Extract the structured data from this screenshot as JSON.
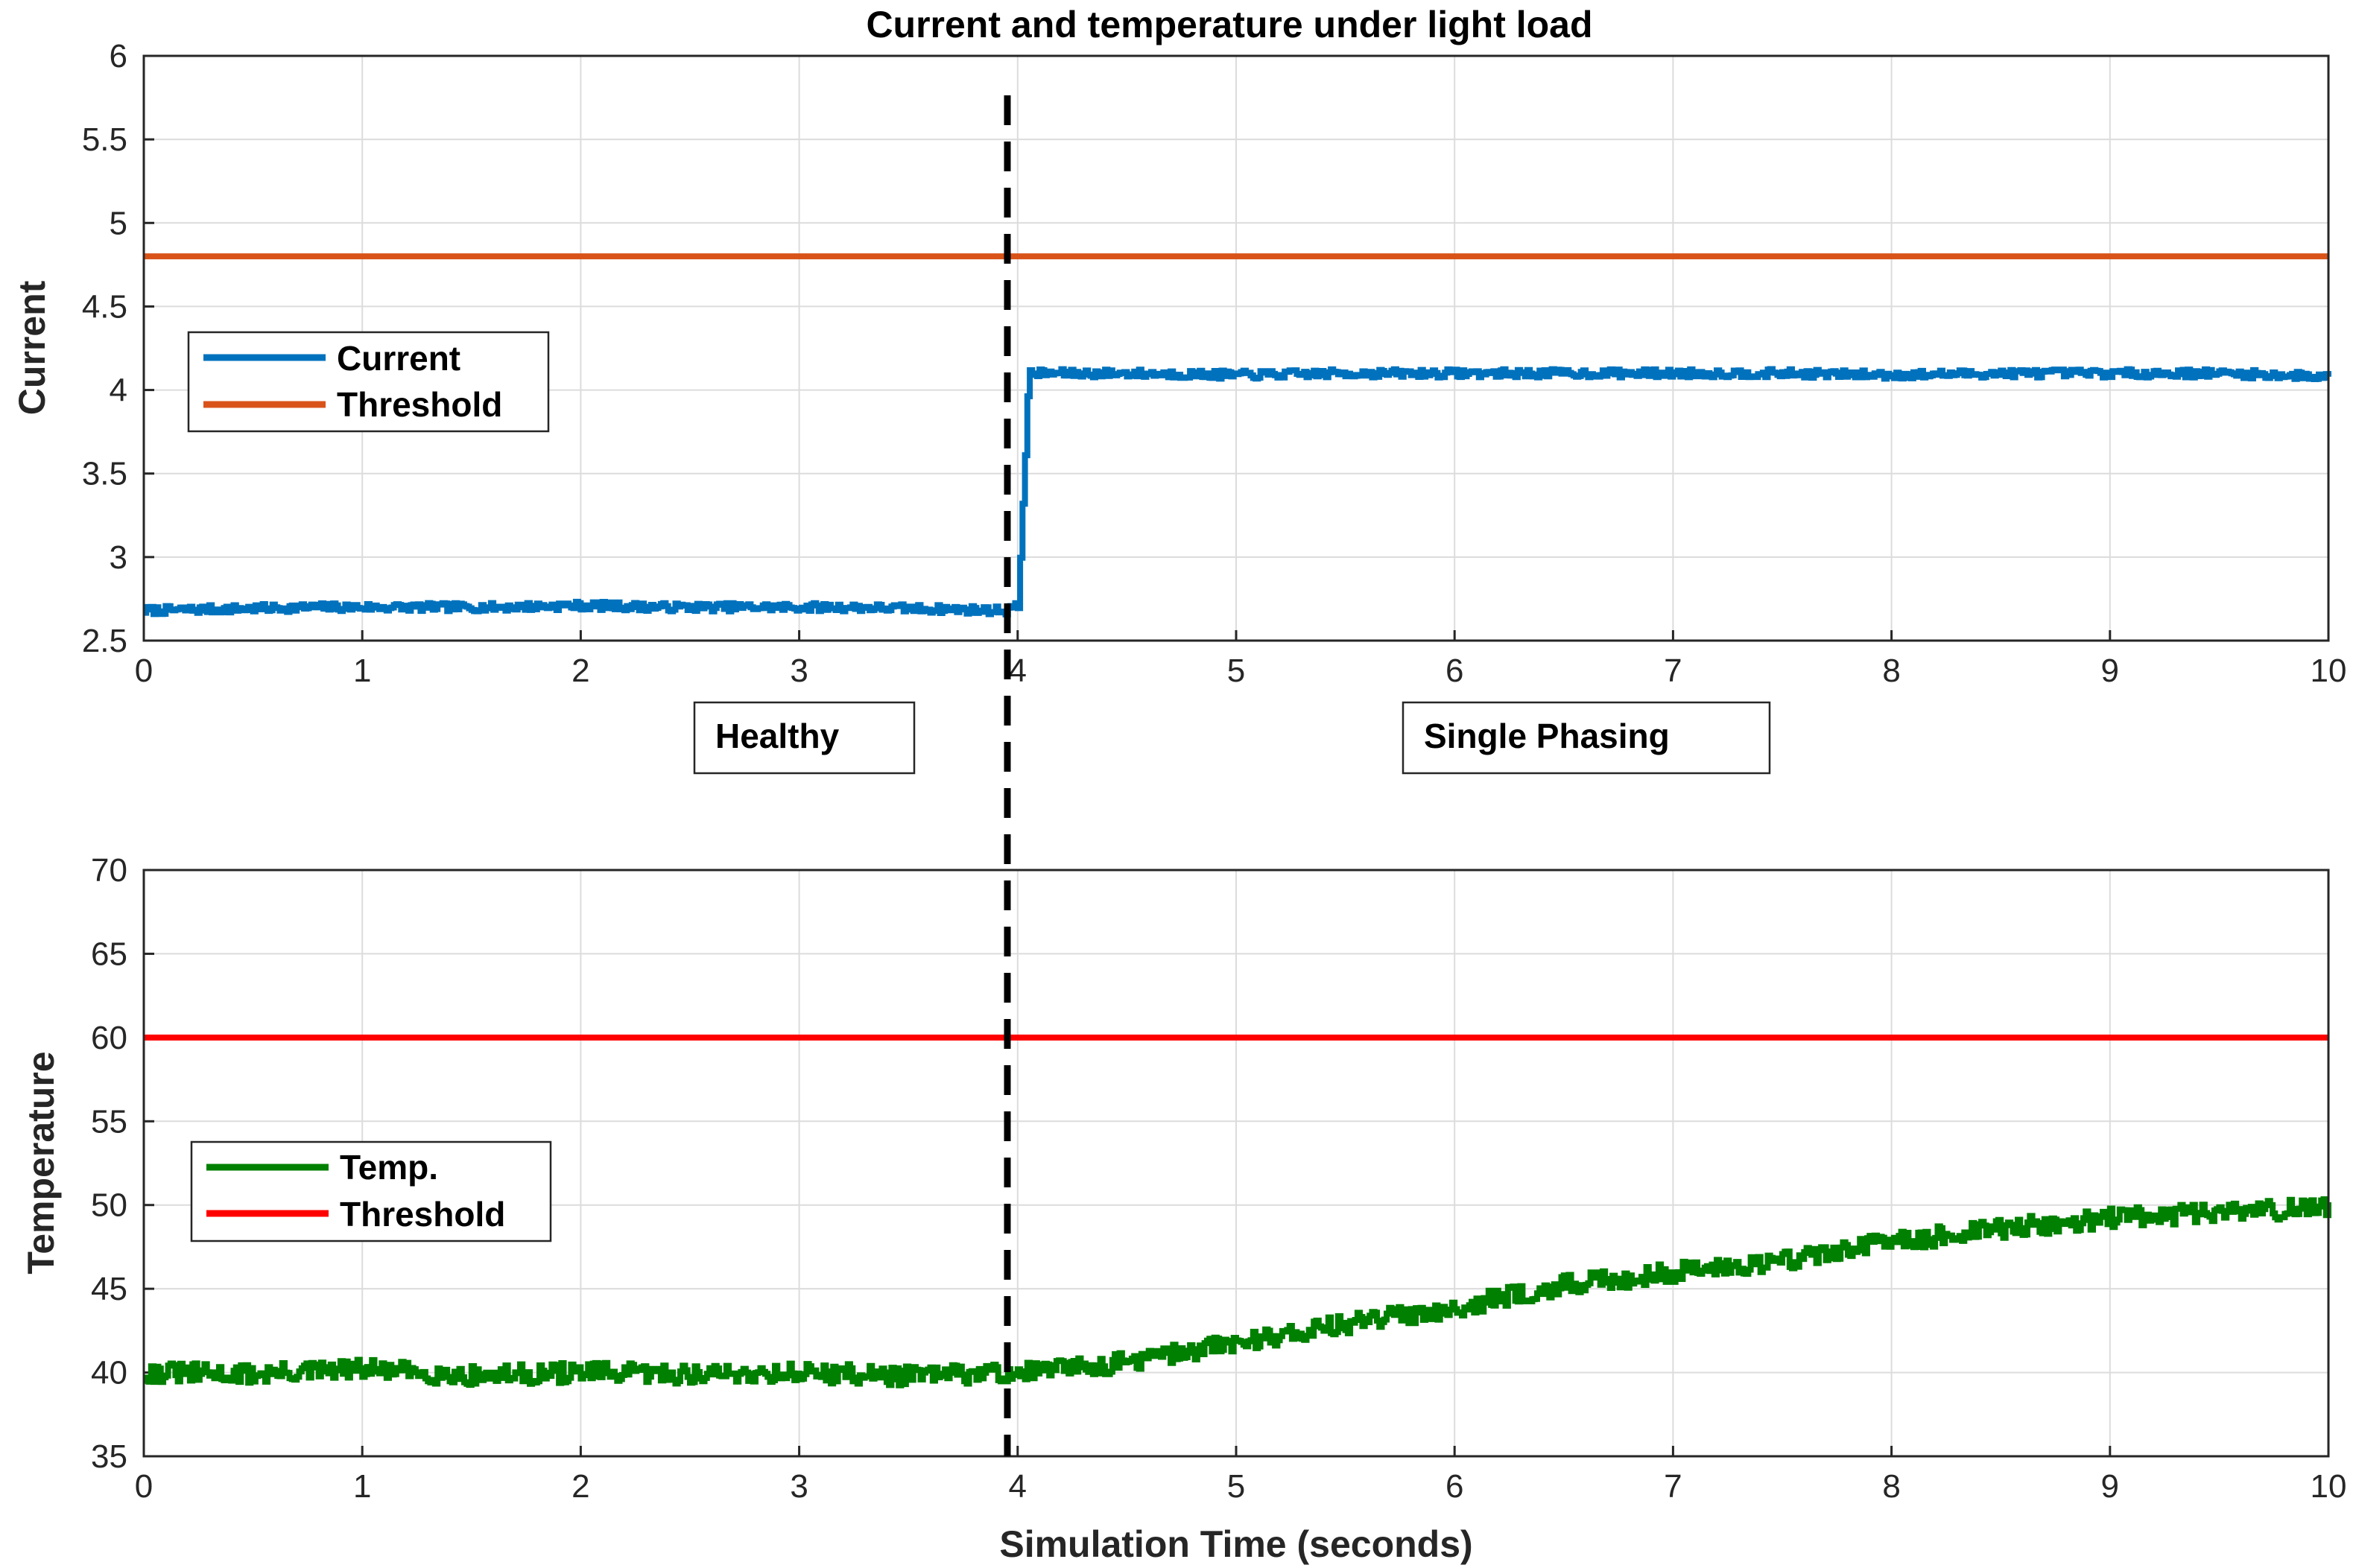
{
  "chart_data": [
    {
      "id": "current",
      "type": "line",
      "title": "Current and temperature under light load",
      "xlabel": "",
      "ylabel": "Current",
      "xlim": [
        0,
        10
      ],
      "ylim": [
        2.5,
        6
      ],
      "xticks": [
        0,
        1,
        2,
        3,
        4,
        5,
        6,
        7,
        8,
        9,
        10
      ],
      "yticks": [
        2.5,
        3,
        3.5,
        4,
        4.5,
        5,
        5.5,
        6
      ],
      "grid": true,
      "legend_position": "middle-left",
      "series": [
        {
          "name": "Current",
          "color": "#0072BD",
          "x": [
            0,
            0.4,
            0.8,
            1.2,
            1.6,
            2.0,
            2.4,
            2.8,
            3.2,
            3.6,
            3.95,
            3.96,
            4.0,
            4.05,
            4.5,
            5,
            5.5,
            6,
            6.5,
            7,
            7.5,
            8,
            8.5,
            9,
            9.5,
            10
          ],
          "y": [
            2.68,
            2.69,
            2.7,
            2.7,
            2.7,
            2.71,
            2.7,
            2.7,
            2.7,
            2.69,
            2.68,
            2.7,
            2.7,
            4.1,
            4.1,
            4.09,
            4.1,
            4.1,
            4.1,
            4.1,
            4.1,
            4.09,
            4.1,
            4.1,
            4.1,
            4.08
          ],
          "noise": 0.025
        },
        {
          "name": "Threshold",
          "color": "#D95319",
          "x": [
            0,
            10
          ],
          "y": [
            4.8,
            4.8
          ]
        }
      ]
    },
    {
      "id": "temperature",
      "type": "line",
      "title": "",
      "xlabel": "Simulation Time (seconds)",
      "ylabel": "Temperature",
      "xlim": [
        0,
        10
      ],
      "ylim": [
        35,
        70
      ],
      "xticks": [
        0,
        1,
        2,
        3,
        4,
        5,
        6,
        7,
        8,
        9,
        10
      ],
      "yticks": [
        35,
        40,
        45,
        50,
        55,
        60,
        65,
        70
      ],
      "grid": true,
      "legend_position": "middle-left",
      "series": [
        {
          "name": "Temp.",
          "color": "#008000",
          "x": [
            0,
            0.5,
            1,
            1.5,
            2,
            2.5,
            3,
            3.5,
            4,
            4.5,
            5,
            5.5,
            6,
            6.5,
            7,
            7.5,
            8,
            8.5,
            9,
            9.5,
            10
          ],
          "y": [
            40.0,
            39.9,
            40.2,
            39.8,
            40.0,
            39.9,
            40.0,
            39.8,
            40.0,
            40.6,
            41.8,
            42.9,
            43.9,
            45.2,
            46.0,
            46.7,
            47.8,
            48.6,
            49.2,
            49.6,
            49.8
          ],
          "noise": 0.6
        },
        {
          "name": "Threshold",
          "color": "#FF0000",
          "x": [
            0,
            10
          ],
          "y": [
            60,
            60
          ]
        }
      ]
    }
  ],
  "annotations": {
    "transition_time": 3.95,
    "healthy_label": "Healthy",
    "single_phasing_label": "Single Phasing"
  }
}
